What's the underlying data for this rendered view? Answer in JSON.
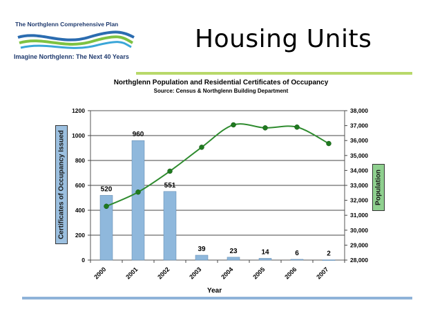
{
  "logo": {
    "top_text": "The Northglenn Comprehensive Plan",
    "bottom_text": "Imagine Northglenn: The Next 40 Years",
    "colors": [
      "#2b6cb0",
      "#7ec242",
      "#3aa6d8"
    ]
  },
  "slide": {
    "title": "Housing Units"
  },
  "colors": {
    "bar": "#8fb8dc",
    "line": "#2e8b2e",
    "marker": "#1f7a1f",
    "rule_green": "#b8d96a",
    "rule_blue": "#8fb3d9"
  },
  "chart_data": {
    "type": "bar+line",
    "title": "Northglenn Population and Residential Certificates of Occupancy",
    "subtitle": "Source: Census & Northglenn Building Department",
    "xlabel": "Year",
    "ylabel_left": "Certificates of Occupancy Issued",
    "ylabel_right": "Population",
    "categories": [
      "2000",
      "2001",
      "2002",
      "2003",
      "2004",
      "2005",
      "2006",
      "2007"
    ],
    "bars": {
      "values": [
        520,
        960,
        551,
        39,
        23,
        14,
        6,
        2
      ],
      "labels": [
        "520",
        "960",
        "551",
        "39",
        "23",
        "14",
        "6",
        "2"
      ]
    },
    "line": {
      "values": [
        31600,
        32550,
        33950,
        35550,
        37050,
        36850,
        36900,
        35800
      ]
    },
    "ylim_left": [
      0,
      1200
    ],
    "ylim_right": [
      28000,
      38000
    ],
    "yticks_left": [
      "0",
      "200",
      "400",
      "600",
      "800",
      "1000",
      "1200"
    ],
    "yticks_right": [
      "28,000",
      "29,000",
      "30,000",
      "31,000",
      "32,000",
      "33,000",
      "34,000",
      "35,000",
      "36,000",
      "37,000",
      "38,000"
    ],
    "grid": "horizontal major"
  }
}
